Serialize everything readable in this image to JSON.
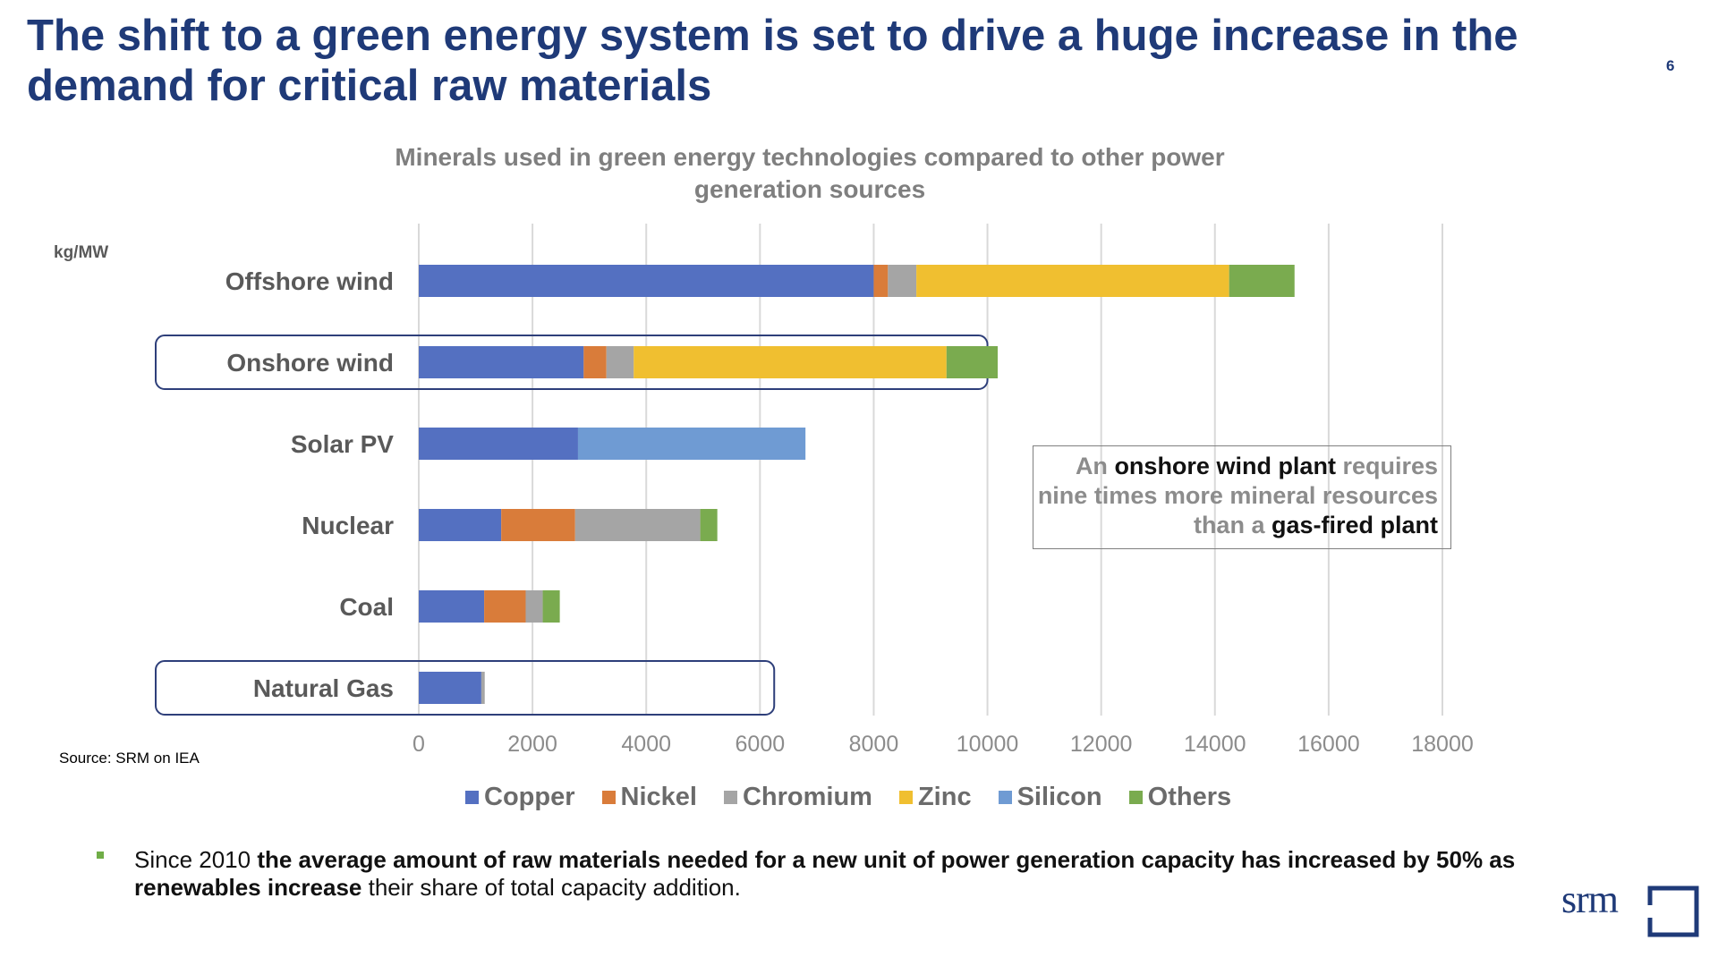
{
  "slide": {
    "title": "The shift to a green energy system is set to drive a huge increase in the demand for critical raw materials",
    "page_number": "6",
    "source": "Source: SRM on IEA",
    "callout": {
      "part1": "An ",
      "part2": "onshore wind plant",
      "part3": " requires nine times more mineral resources than a ",
      "part4": "gas-fired plant"
    },
    "footnote": {
      "lead": "Since 2010 ",
      "bold": "the average amount of raw materials needed for a new unit of power generation capacity has increased by 50% as renewables increase",
      "tail": " their share of total capacity addition."
    },
    "logo_text": "srm",
    "brand_color": "#1f3a78"
  },
  "chart_data": {
    "type": "bar",
    "orientation": "horizontal",
    "stacked": true,
    "title": "Minerals used in green energy technologies compared to other power generation sources",
    "unit_label": "kg/MW",
    "xlabel": "",
    "ylabel": "kg/MW",
    "xlim": [
      0,
      18000
    ],
    "xticks": [
      0,
      2000,
      4000,
      6000,
      8000,
      10000,
      12000,
      14000,
      16000,
      18000
    ],
    "grid": true,
    "legend_position": "bottom",
    "categories": [
      "Offshore wind",
      "Onshore wind",
      "Solar PV",
      "Nuclear",
      "Coal",
      "Natural Gas"
    ],
    "highlighted_categories": [
      "Onshore wind",
      "Natural Gas"
    ],
    "series": [
      {
        "name": "Copper",
        "color": "#5470c1",
        "values": [
          8000,
          2900,
          2800,
          1450,
          1150,
          1100
        ]
      },
      {
        "name": "Nickel",
        "color": "#d97c3a",
        "values": [
          250,
          400,
          0,
          1300,
          730,
          0
        ]
      },
      {
        "name": "Chromium",
        "color": "#a5a5a5",
        "values": [
          500,
          480,
          0,
          2200,
          300,
          60
        ]
      },
      {
        "name": "Zinc",
        "color": "#f0bf30",
        "values": [
          5500,
          5500,
          0,
          0,
          0,
          0
        ]
      },
      {
        "name": "Silicon",
        "color": "#6f9bd3",
        "values": [
          0,
          0,
          4000,
          0,
          0,
          0
        ]
      },
      {
        "name": "Others",
        "color": "#7aab4f",
        "values": [
          1150,
          900,
          0,
          300,
          300,
          0
        ]
      }
    ]
  }
}
